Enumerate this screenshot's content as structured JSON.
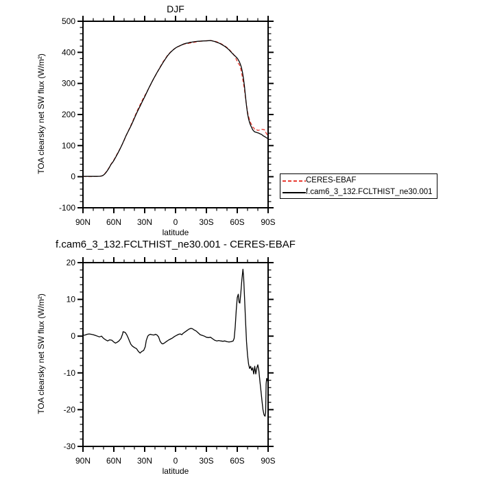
{
  "page": {
    "background": "#ffffff"
  },
  "chart_data": [
    {
      "type": "line",
      "title": "DJF",
      "xlabel": "latitude",
      "ylabel": "TOA clearsky net SW flux (W/m²)",
      "xlim": [
        90,
        -90
      ],
      "ylim": [
        -100,
        500
      ],
      "grid": false,
      "xticks": {
        "values": [
          90,
          60,
          30,
          0,
          -30,
          -60,
          -90
        ],
        "labels": [
          "90N",
          "60N",
          "30N",
          "0",
          "30S",
          "60S",
          "90S"
        ],
        "minor_step": 10
      },
      "yticks": {
        "values": [
          500,
          400,
          300,
          200,
          100,
          0,
          -100
        ],
        "labels": [
          "500",
          "400",
          "300",
          "200",
          "100",
          "0",
          "-100"
        ],
        "minor_step": 20
      },
      "legend": {
        "position": "outside-right-bottom",
        "entries": [
          {
            "label": "CERES-EBAF",
            "color": "#e8392f",
            "style": "dashed"
          },
          {
            "label": "f.cam6_3_132.FCLTHIST_ne30.001",
            "color": "#000000",
            "style": "solid"
          }
        ]
      },
      "series": [
        {
          "name": "CERES-EBAF",
          "color": "#e8392f",
          "dash": [
            5,
            3
          ],
          "derive": "model_minus_difference"
        },
        {
          "name": "f.cam6_3_132.FCLTHIST_ne30.001",
          "color": "#000000",
          "dash": null,
          "points": [
            [
              90,
              1
            ],
            [
              85,
              1
            ],
            [
              80,
              1
            ],
            [
              76,
              1
            ],
            [
              73,
              1.5
            ],
            [
              71,
              3
            ],
            [
              69,
              8
            ],
            [
              67,
              16
            ],
            [
              65,
              26
            ],
            [
              63,
              38
            ],
            [
              61,
              47
            ],
            [
              60,
              52
            ],
            [
              58,
              64
            ],
            [
              56,
              76
            ],
            [
              54,
              89
            ],
            [
              52,
              103
            ],
            [
              50,
              118
            ],
            [
              48,
              133
            ],
            [
              46,
              146
            ],
            [
              44,
              159
            ],
            [
              42,
              173
            ],
            [
              40,
              188
            ],
            [
              38,
              203
            ],
            [
              36,
              217
            ],
            [
              34,
              230
            ],
            [
              32,
              244
            ],
            [
              30,
              257
            ],
            [
              28,
              271
            ],
            [
              26,
              285
            ],
            [
              24,
              298
            ],
            [
              22,
              311
            ],
            [
              20,
              323
            ],
            [
              18,
              335
            ],
            [
              16,
              346
            ],
            [
              14,
              357
            ],
            [
              12,
              368
            ],
            [
              10,
              378
            ],
            [
              8,
              388
            ],
            [
              6,
              396
            ],
            [
              4,
              403
            ],
            [
              2,
              409
            ],
            [
              0,
              414
            ],
            [
              -2,
              418
            ],
            [
              -4,
              421
            ],
            [
              -6,
              424
            ],
            [
              -8,
              427
            ],
            [
              -10,
              429
            ],
            [
              -12,
              430
            ],
            [
              -14,
              432
            ],
            [
              -16,
              433
            ],
            [
              -18,
              434
            ],
            [
              -20,
              435
            ],
            [
              -22,
              435.5
            ],
            [
              -24,
              436
            ],
            [
              -26,
              436.5
            ],
            [
              -28,
              437
            ],
            [
              -30,
              437
            ],
            [
              -32,
              437.5
            ],
            [
              -34,
              438
            ],
            [
              -36,
              436.5
            ],
            [
              -38,
              435
            ],
            [
              -40,
              432.5
            ],
            [
              -42,
              430
            ],
            [
              -44,
              427
            ],
            [
              -46,
              423
            ],
            [
              -48,
              419
            ],
            [
              -50,
              414
            ],
            [
              -52,
              408
            ],
            [
              -54,
              401
            ],
            [
              -56,
              394
            ],
            [
              -58,
              388
            ],
            [
              -60,
              381
            ],
            [
              -61,
              376
            ],
            [
              -62,
              370
            ],
            [
              -63,
              362
            ],
            [
              -64,
              352
            ],
            [
              -65,
              337
            ],
            [
              -66,
              317
            ],
            [
              -67,
              291
            ],
            [
              -68,
              258
            ],
            [
              -69,
              228
            ],
            [
              -70,
              203
            ],
            [
              -71,
              186
            ],
            [
              -72,
              174
            ],
            [
              -73,
              165
            ],
            [
              -74,
              158
            ],
            [
              -75,
              151
            ],
            [
              -76,
              147
            ],
            [
              -77,
              144
            ],
            [
              -78,
              143
            ],
            [
              -79,
              142
            ],
            [
              -80,
              141
            ],
            [
              -81,
              140
            ],
            [
              -82,
              138
            ],
            [
              -83,
              137
            ],
            [
              -84,
              135
            ],
            [
              -85,
              132
            ],
            [
              -86,
              130
            ],
            [
              -87,
              128
            ],
            [
              -88,
              126
            ],
            [
              -89,
              124
            ],
            [
              -90,
              123
            ]
          ]
        }
      ]
    },
    {
      "type": "line",
      "title": "f.cam6_3_132.FCLTHIST_ne30.001 - CERES-EBAF",
      "xlabel": "latitude",
      "ylabel": "TOA clearsky net SW flux (W/m²)",
      "xlim": [
        90,
        -90
      ],
      "ylim": [
        -30,
        20
      ],
      "grid": false,
      "xticks": {
        "values": [
          90,
          60,
          30,
          0,
          -30,
          -60,
          -90
        ],
        "labels": [
          "90N",
          "60N",
          "30N",
          "0",
          "30S",
          "60S",
          "90S"
        ],
        "minor_step": 10
      },
      "yticks": {
        "values": [
          20,
          10,
          0,
          -10,
          -20,
          -30
        ],
        "labels": [
          "20",
          "10",
          "0",
          "-10",
          "-20",
          "-30"
        ],
        "minor_step": 2
      },
      "series": [
        {
          "name": "f.cam6_3_132.FCLTHIST_ne30.001 - CERES-EBAF",
          "color": "#000000",
          "dash": null,
          "points": [
            [
              90,
              0.2
            ],
            [
              88,
              0.3
            ],
            [
              86,
              0.5
            ],
            [
              84,
              0.6
            ],
            [
              82,
              0.5
            ],
            [
              80,
              0.4
            ],
            [
              78,
              0.2
            ],
            [
              76,
              0.0
            ],
            [
              74,
              -0.2
            ],
            [
              72,
              0.0
            ],
            [
              70,
              -0.6
            ],
            [
              68,
              -1.0
            ],
            [
              66,
              -1.3
            ],
            [
              64,
              -1.0
            ],
            [
              62,
              -1.1
            ],
            [
              60,
              -1.6
            ],
            [
              58.5,
              -1.9
            ],
            [
              57,
              -1.7
            ],
            [
              55,
              -1.3
            ],
            [
              53,
              -0.6
            ],
            [
              51.5,
              0.6
            ],
            [
              51,
              1.2
            ],
            [
              50,
              1.1
            ],
            [
              49,
              1.0
            ],
            [
              47.5,
              0.4
            ],
            [
              46,
              -0.5
            ],
            [
              45,
              -1.2
            ],
            [
              43.5,
              -2.2
            ],
            [
              42,
              -2.7
            ],
            [
              40,
              -3.1
            ],
            [
              38,
              -3.4
            ],
            [
              36,
              -4.2
            ],
            [
              34.5,
              -4.6
            ],
            [
              33,
              -4.2
            ],
            [
              31,
              -3.9
            ],
            [
              29.5,
              -2.9
            ],
            [
              28.5,
              -1.2
            ],
            [
              27,
              0.0
            ],
            [
              26,
              0.3
            ],
            [
              24.5,
              0.5
            ],
            [
              23,
              0.4
            ],
            [
              21,
              0.3
            ],
            [
              19.5,
              0.5
            ],
            [
              18,
              0.3
            ],
            [
              16.5,
              -0.2
            ],
            [
              15,
              -1.4
            ],
            [
              13.5,
              -2.0
            ],
            [
              12.5,
              -2.1
            ],
            [
              11,
              -1.9
            ],
            [
              9,
              -1.5
            ],
            [
              7,
              -1.1
            ],
            [
              5,
              -0.8
            ],
            [
              3,
              -0.5
            ],
            [
              1,
              -0.1
            ],
            [
              -1,
              0.2
            ],
            [
              -3,
              0.5
            ],
            [
              -4.5,
              0.6
            ],
            [
              -6,
              0.4
            ],
            [
              -7.5,
              0.8
            ],
            [
              -9,
              1.1
            ],
            [
              -11,
              1.5
            ],
            [
              -13,
              1.9
            ],
            [
              -15,
              2.1
            ],
            [
              -16.5,
              2.0
            ],
            [
              -18,
              1.7
            ],
            [
              -20,
              1.4
            ],
            [
              -22,
              0.9
            ],
            [
              -24,
              0.4
            ],
            [
              -26,
              0.2
            ],
            [
              -28,
              0.0
            ],
            [
              -30,
              -0.3
            ],
            [
              -32,
              -0.4
            ],
            [
              -34,
              -0.3
            ],
            [
              -36,
              -0.7
            ],
            [
              -38,
              -1.1
            ],
            [
              -40,
              -1.3
            ],
            [
              -42,
              -1.2
            ],
            [
              -44,
              -1.3
            ],
            [
              -46,
              -1.4
            ],
            [
              -48,
              -1.3
            ],
            [
              -50,
              -1.5
            ],
            [
              -52,
              -1.6
            ],
            [
              -54,
              -1.5
            ],
            [
              -56,
              -1.3
            ],
            [
              -57,
              -0.6
            ],
            [
              -58,
              2.5
            ],
            [
              -59,
              7.0
            ],
            [
              -60,
              10.5
            ],
            [
              -61,
              11.4
            ],
            [
              -61.8,
              9.2
            ],
            [
              -62.5,
              9.0
            ],
            [
              -63.5,
              12.0
            ],
            [
              -64.5,
              15.5
            ],
            [
              -65.5,
              18.2
            ],
            [
              -66.2,
              16.0
            ],
            [
              -67,
              11.0
            ],
            [
              -68,
              4.5
            ],
            [
              -69,
              -1.5
            ],
            [
              -70,
              -5.2
            ],
            [
              -71,
              -7.6
            ],
            [
              -72,
              -8.8
            ],
            [
              -73,
              -8.2
            ],
            [
              -74,
              -9.3
            ],
            [
              -75,
              -8.6
            ],
            [
              -76,
              -10.3
            ],
            [
              -77,
              -8.2
            ],
            [
              -78,
              -10.3
            ],
            [
              -79,
              -8.7
            ],
            [
              -80,
              -7.8
            ],
            [
              -81,
              -9.4
            ],
            [
              -82,
              -12.2
            ],
            [
              -83,
              -14.8
            ],
            [
              -84,
              -17.5
            ],
            [
              -85,
              -20.0
            ],
            [
              -86,
              -21.4
            ],
            [
              -87,
              -21.8
            ],
            [
              -87.6,
              -20.8
            ],
            [
              -88.1,
              -13.0
            ],
            [
              -88.6,
              -11.5
            ],
            [
              -89.2,
              -11.9
            ],
            [
              -90,
              -12.6
            ]
          ]
        }
      ]
    }
  ]
}
